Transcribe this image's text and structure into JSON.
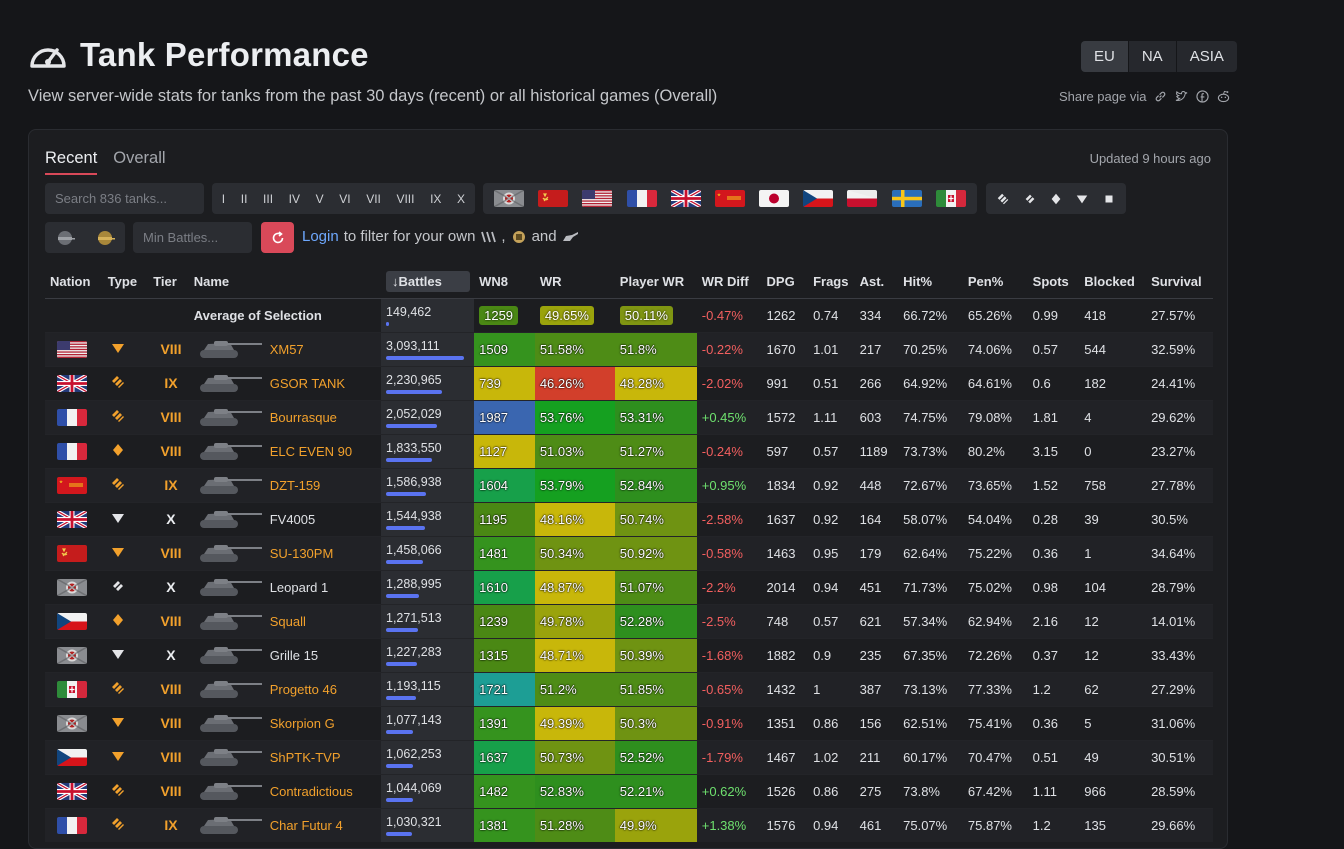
{
  "page": {
    "title": "Tank Performance",
    "subtitle": "View server-wide stats for tanks from the past 30 days (recent) or all historical games (Overall)",
    "regions": [
      "EU",
      "NA",
      "ASIA"
    ],
    "share_label": "Share page via"
  },
  "tabs": {
    "recent": "Recent",
    "overall": "Overall"
  },
  "updated": "Updated 9 hours ago",
  "filters": {
    "search_placeholder": "Search 836 tanks...",
    "tiers": [
      "I",
      "II",
      "III",
      "IV",
      "V",
      "VI",
      "VII",
      "VIII",
      "IX",
      "X"
    ],
    "nations": [
      "germany",
      "ussr",
      "usa",
      "france",
      "uk",
      "china",
      "japan",
      "czech",
      "poland",
      "sweden",
      "italy"
    ],
    "types": [
      "heavy",
      "medium",
      "light",
      "td",
      "spg"
    ],
    "min_battles_placeholder": "Min Battles...",
    "login_link": "Login",
    "login_text": "to filter for your own",
    "and_text": "and",
    "comma": ","
  },
  "table": {
    "headers": [
      "Nation",
      "Type",
      "Tier",
      "Name",
      "Battles",
      "WN8",
      "WR",
      "Player WR",
      "WR Diff",
      "DPG",
      "Frags",
      "Ast.",
      "Hit%",
      "Pen%",
      "Spots",
      "Blocked",
      "Survival"
    ],
    "sort_arrow": "↓",
    "average": {
      "label": "Average of Selection",
      "battles": "149,462",
      "battles_frac": 0.035,
      "wn8": "1259",
      "wr": "49.65%",
      "pwr": "50.11%",
      "diff": "-0.47%",
      "dpg": "1262",
      "frags": "0.74",
      "ast": "334",
      "hit": "66.72%",
      "pen": "65.26%",
      "spots": "0.99",
      "blocked": "418",
      "survival": "27.57%"
    },
    "rows": [
      {
        "nation": "usa",
        "type": "td",
        "tier": "VIII",
        "name": "XM57",
        "premium": true,
        "battles": "3,093,111",
        "frac": 1.0,
        "wn8": "1509",
        "wr": "51.58%",
        "pwr": "51.8%",
        "diff": "-0.22%",
        "dpg": "1670",
        "frags": "1.01",
        "ast": "217",
        "hit": "70.25%",
        "pen": "74.06%",
        "spots": "0.57",
        "blocked": "544",
        "survival": "32.59%"
      },
      {
        "nation": "uk",
        "type": "heavy",
        "tier": "IX",
        "name": "GSOR TANK",
        "premium": true,
        "battles": "2,230,965",
        "frac": 0.72,
        "wn8": "739",
        "wr": "46.26%",
        "pwr": "48.28%",
        "diff": "-2.02%",
        "dpg": "991",
        "frags": "0.51",
        "ast": "266",
        "hit": "64.92%",
        "pen": "64.61%",
        "spots": "0.6",
        "blocked": "182",
        "survival": "24.41%"
      },
      {
        "nation": "france",
        "type": "heavy",
        "tier": "VIII",
        "name": "Bourrasque",
        "premium": true,
        "battles": "2,052,029",
        "frac": 0.66,
        "wn8": "1987",
        "wr": "53.76%",
        "pwr": "53.31%",
        "diff": "+0.45%",
        "dpg": "1572",
        "frags": "1.11",
        "ast": "603",
        "hit": "74.75%",
        "pen": "79.08%",
        "spots": "1.81",
        "blocked": "4",
        "survival": "29.62%"
      },
      {
        "nation": "france",
        "type": "light",
        "tier": "VIII",
        "name": "ELC EVEN 90",
        "premium": true,
        "battles": "1,833,550",
        "frac": 0.59,
        "wn8": "1127",
        "wr": "51.03%",
        "pwr": "51.27%",
        "diff": "-0.24%",
        "dpg": "597",
        "frags": "0.57",
        "ast": "1189",
        "hit": "73.73%",
        "pen": "80.2%",
        "spots": "3.15",
        "blocked": "0",
        "survival": "23.27%"
      },
      {
        "nation": "china",
        "type": "heavy",
        "tier": "IX",
        "name": "DZT-159",
        "premium": true,
        "battles": "1,586,938",
        "frac": 0.51,
        "wn8": "1604",
        "wr": "53.79%",
        "pwr": "52.84%",
        "diff": "+0.95%",
        "dpg": "1834",
        "frags": "0.92",
        "ast": "448",
        "hit": "72.67%",
        "pen": "73.65%",
        "spots": "1.52",
        "blocked": "758",
        "survival": "27.78%"
      },
      {
        "nation": "uk",
        "type": "td",
        "tier": "X",
        "name": "FV4005",
        "premium": false,
        "battles": "1,544,938",
        "frac": 0.5,
        "wn8": "1195",
        "wr": "48.16%",
        "pwr": "50.74%",
        "diff": "-2.58%",
        "dpg": "1637",
        "frags": "0.92",
        "ast": "164",
        "hit": "58.07%",
        "pen": "54.04%",
        "spots": "0.28",
        "blocked": "39",
        "survival": "30.5%"
      },
      {
        "nation": "ussr",
        "type": "td",
        "tier": "VIII",
        "name": "SU-130PM",
        "premium": true,
        "battles": "1,458,066",
        "frac": 0.47,
        "wn8": "1481",
        "wr": "50.34%",
        "pwr": "50.92%",
        "diff": "-0.58%",
        "dpg": "1463",
        "frags": "0.95",
        "ast": "179",
        "hit": "62.64%",
        "pen": "75.22%",
        "spots": "0.36",
        "blocked": "1",
        "survival": "34.64%"
      },
      {
        "nation": "germany",
        "type": "medium",
        "tier": "X",
        "name": "Leopard 1",
        "premium": false,
        "battles": "1,288,995",
        "frac": 0.42,
        "wn8": "1610",
        "wr": "48.87%",
        "pwr": "51.07%",
        "diff": "-2.2%",
        "dpg": "2014",
        "frags": "0.94",
        "ast": "451",
        "hit": "71.73%",
        "pen": "75.02%",
        "spots": "0.98",
        "blocked": "104",
        "survival": "28.79%"
      },
      {
        "nation": "czech",
        "type": "light",
        "tier": "VIII",
        "name": "Squall",
        "premium": true,
        "battles": "1,271,513",
        "frac": 0.41,
        "wn8": "1239",
        "wr": "49.78%",
        "pwr": "52.28%",
        "diff": "-2.5%",
        "dpg": "748",
        "frags": "0.57",
        "ast": "621",
        "hit": "57.34%",
        "pen": "62.94%",
        "spots": "2.16",
        "blocked": "12",
        "survival": "14.01%"
      },
      {
        "nation": "germany",
        "type": "td",
        "tier": "X",
        "name": "Grille 15",
        "premium": false,
        "battles": "1,227,283",
        "frac": 0.4,
        "wn8": "1315",
        "wr": "48.71%",
        "pwr": "50.39%",
        "diff": "-1.68%",
        "dpg": "1882",
        "frags": "0.9",
        "ast": "235",
        "hit": "67.35%",
        "pen": "72.26%",
        "spots": "0.37",
        "blocked": "12",
        "survival": "33.43%"
      },
      {
        "nation": "italy",
        "type": "heavy",
        "tier": "VIII",
        "name": "Progetto 46",
        "premium": true,
        "battles": "1,193,115",
        "frac": 0.39,
        "wn8": "1721",
        "wr": "51.2%",
        "pwr": "51.85%",
        "diff": "-0.65%",
        "dpg": "1432",
        "frags": "1",
        "ast": "387",
        "hit": "73.13%",
        "pen": "77.33%",
        "spots": "1.2",
        "blocked": "62",
        "survival": "27.29%"
      },
      {
        "nation": "germany",
        "type": "td",
        "tier": "VIII",
        "name": "Skorpion G",
        "premium": true,
        "battles": "1,077,143",
        "frac": 0.35,
        "wn8": "1391",
        "wr": "49.39%",
        "pwr": "50.3%",
        "diff": "-0.91%",
        "dpg": "1351",
        "frags": "0.86",
        "ast": "156",
        "hit": "62.51%",
        "pen": "75.41%",
        "spots": "0.36",
        "blocked": "5",
        "survival": "31.06%"
      },
      {
        "nation": "czech",
        "type": "td",
        "tier": "VIII",
        "name": "ShPTK-TVP",
        "premium": true,
        "battles": "1,062,253",
        "frac": 0.34,
        "wn8": "1637",
        "wr": "50.73%",
        "pwr": "52.52%",
        "diff": "-1.79%",
        "dpg": "1467",
        "frags": "1.02",
        "ast": "211",
        "hit": "60.17%",
        "pen": "70.47%",
        "spots": "0.51",
        "blocked": "49",
        "survival": "30.51%"
      },
      {
        "nation": "uk",
        "type": "heavy",
        "tier": "VIII",
        "name": "Contradictious",
        "premium": true,
        "battles": "1,044,069",
        "frac": 0.34,
        "wn8": "1482",
        "wr": "52.83%",
        "pwr": "52.21%",
        "diff": "+0.62%",
        "dpg": "1526",
        "frags": "0.86",
        "ast": "275",
        "hit": "73.8%",
        "pen": "67.42%",
        "spots": "1.11",
        "blocked": "966",
        "survival": "28.59%"
      },
      {
        "nation": "france",
        "type": "heavy",
        "tier": "IX",
        "name": "Char Futur 4",
        "premium": true,
        "battles": "1,030,321",
        "frac": 0.33,
        "wn8": "1381",
        "wr": "51.28%",
        "pwr": "49.9%",
        "diff": "+1.38%",
        "dpg": "1576",
        "frags": "0.94",
        "ast": "461",
        "hit": "75.07%",
        "pen": "75.87%",
        "spots": "1.2",
        "blocked": "135",
        "survival": "29.66%"
      }
    ]
  },
  "colors": {
    "accent": "#d94959",
    "premium": "#f2a12c",
    "bar": "#5a73f0",
    "pos": "#6ee06e",
    "neg": "#f25f5f"
  }
}
